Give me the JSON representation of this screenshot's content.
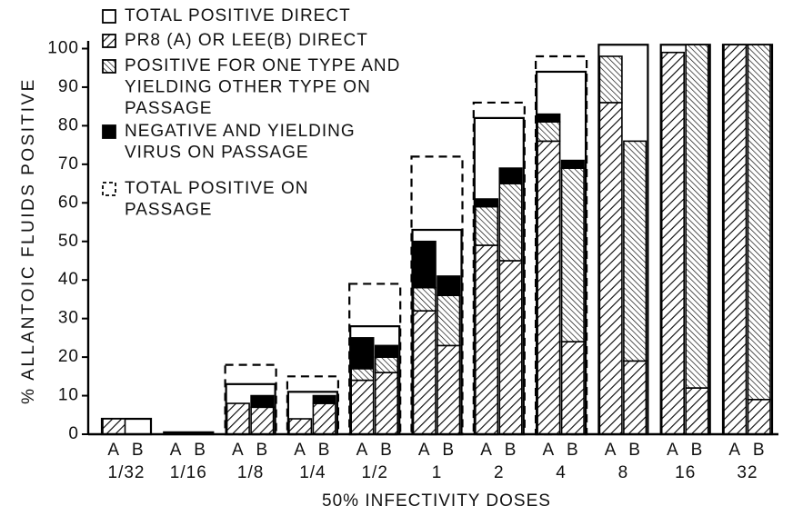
{
  "chart_data": {
    "type": "bar",
    "stacked": true,
    "y_label": "% ALLANTOIC FLUIDS POSITIVE",
    "x_label": "50% INFECTIVITY DOSES",
    "categories": [
      "1/32",
      "1/16",
      "1/8",
      "1/4",
      "1/2",
      "1",
      "2",
      "4",
      "8",
      "16",
      "32"
    ],
    "subcategories": [
      "A",
      "B"
    ],
    "ylim": [
      0,
      102
    ],
    "yticks": [
      0,
      10,
      20,
      30,
      40,
      50,
      60,
      70,
      80,
      90,
      100
    ],
    "legend": "upper left",
    "series": [
      {
        "name": "TOTAL POSITIVE DIRECT",
        "style": "outline",
        "color": "#000000",
        "values": [
          4,
          0.5,
          13,
          11,
          28,
          53,
          82,
          94,
          101,
          101,
          101
        ]
      },
      {
        "name": "PR8 (A) OR LEE(B) DIRECT",
        "style": "hatch-forward",
        "color": "#000000",
        "values": [
          [
            4,
            0
          ],
          [
            0,
            0
          ],
          [
            8,
            7
          ],
          [
            4,
            8
          ],
          [
            14,
            16
          ],
          [
            32,
            23
          ],
          [
            49,
            45
          ],
          [
            76,
            24
          ],
          [
            86,
            19
          ],
          [
            99,
            12
          ],
          [
            101,
            9
          ]
        ]
      },
      {
        "name": "POSITIVE FOR ONE TYPE AND YIELDING OTHER TYPE ON PASSAGE",
        "style": "hatch-back",
        "color": "#000000",
        "values": [
          [
            0,
            0
          ],
          [
            0,
            0
          ],
          [
            0,
            0
          ],
          [
            0,
            0
          ],
          [
            3,
            4
          ],
          [
            6,
            13
          ],
          [
            10,
            20
          ],
          [
            5,
            45
          ],
          [
            12,
            57
          ],
          [
            0,
            89
          ],
          [
            0,
            92
          ]
        ]
      },
      {
        "name": "NEGATIVE AND YIELDING VIRUS ON PASSAGE",
        "style": "solid",
        "color": "#000000",
        "values": [
          [
            0,
            0
          ],
          [
            0,
            0
          ],
          [
            0,
            3
          ],
          [
            0,
            2
          ],
          [
            8,
            3
          ],
          [
            12,
            5
          ],
          [
            2,
            4
          ],
          [
            2,
            2
          ],
          [
            0,
            0
          ],
          [
            0,
            0
          ],
          [
            0,
            0
          ]
        ]
      },
      {
        "name": "TOTAL POSITIVE ON PASSAGE",
        "style": "dashed-outline",
        "color": "#000000",
        "values": [
          null,
          null,
          18,
          15,
          39,
          72,
          86,
          98,
          null,
          null,
          null
        ]
      }
    ]
  }
}
